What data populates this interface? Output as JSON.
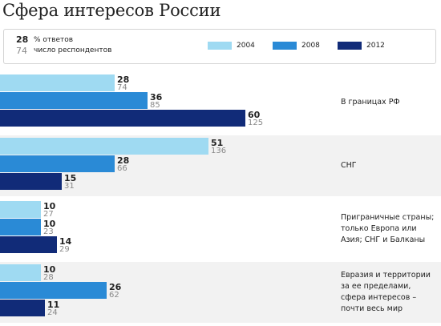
{
  "title": "Сфера интересов России",
  "legend": {
    "example_pct": "28",
    "example_count": "74",
    "pct_label": "% ответов",
    "count_label": "число респондентов",
    "years": [
      {
        "label": "2004",
        "color": "#9fdaf2"
      },
      {
        "label": "2008",
        "color": "#2a8ad6"
      },
      {
        "label": "2012",
        "color": "#112b78"
      }
    ]
  },
  "chart_data": {
    "type": "bar",
    "orientation": "horizontal",
    "title": "Сфера интересов России",
    "categories": [
      "В границах РФ",
      "СНГ",
      "Приграничные страны; только Европа или Азия; СНГ и Балканы",
      "Евразия и территории за ее пределами, сфера интересов – почти весь мир"
    ],
    "series": [
      {
        "name": "2004",
        "color": "#9fdaf2",
        "values": [
          28,
          51,
          10,
          10
        ],
        "respondents": [
          74,
          136,
          27,
          28
        ]
      },
      {
        "name": "2008",
        "color": "#2a8ad6",
        "values": [
          36,
          28,
          10,
          26
        ],
        "respondents": [
          85,
          66,
          23,
          62
        ]
      },
      {
        "name": "2012",
        "color": "#112b78",
        "values": [
          60,
          15,
          14,
          11
        ],
        "respondents": [
          125,
          31,
          29,
          24
        ]
      }
    ],
    "unit": "% ответов",
    "grid": false,
    "legend_position": "top"
  }
}
